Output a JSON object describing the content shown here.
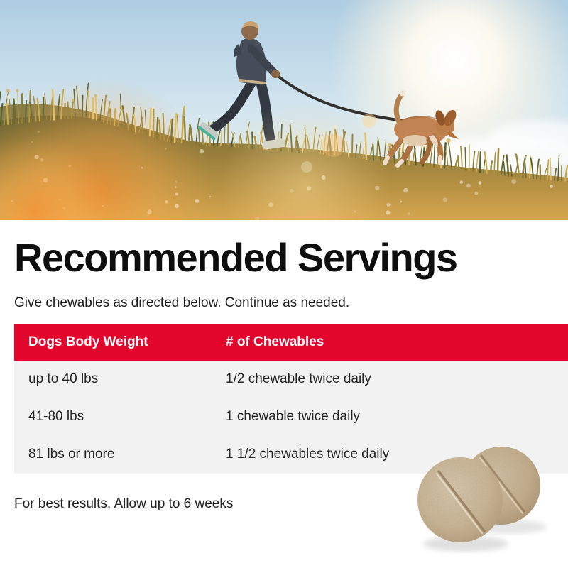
{
  "colors": {
    "accent_red": "#E2062C",
    "table_body_bg": "#F2F2F2",
    "heading_text": "#0E0E0E",
    "tablet_tan": "#C3AE90"
  },
  "heading": {
    "title": "Recommended Servings",
    "subtitle": "Give chewables as directed below. Continue as needed."
  },
  "table": {
    "columns": [
      "Dogs Body Weight",
      "# of Chewables"
    ],
    "rows": [
      {
        "weight": "up to 40 lbs",
        "chewables": "1/2 chewable twice daily"
      },
      {
        "weight": "41-80 lbs",
        "chewables": "1 chewable twice daily"
      },
      {
        "weight": "81 lbs or more",
        "chewables": "1 1/2 chewables twice daily"
      }
    ]
  },
  "footer": {
    "note": "For best results, Allow up to 6 weeks"
  }
}
